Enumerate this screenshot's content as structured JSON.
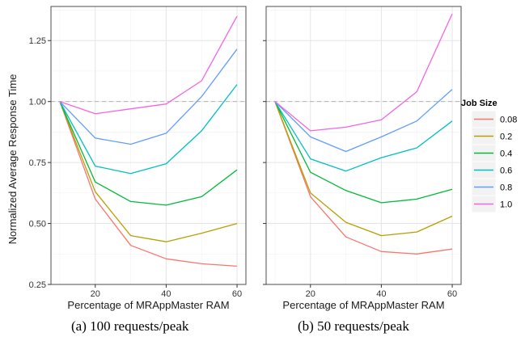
{
  "ylabel": "Normalized Average Response Time",
  "legend": {
    "title": "Job Size",
    "position": "right",
    "entries": [
      {
        "label": "0.08",
        "color": "#f8766d"
      },
      {
        "label": "0.2",
        "color": "#b79f00"
      },
      {
        "label": "0.4",
        "color": "#00ba38"
      },
      {
        "label": "0.6",
        "color": "#00bfc4"
      },
      {
        "label": "0.8",
        "color": "#619cff"
      },
      {
        "label": "1.0",
        "color": "#f564e3"
      }
    ]
  },
  "captions": {
    "a": "(a) 100 requests/peak",
    "b": "(b) 50 requests/peak"
  },
  "chart_data": [
    {
      "type": "line",
      "xlabel": "Percentage of MRAppMaster RAM",
      "ylabel": "Normalized Average Response Time",
      "x": [
        10,
        20,
        30,
        40,
        50,
        60
      ],
      "xlim": [
        7.5,
        62.5
      ],
      "ylim": [
        0.25,
        1.39
      ],
      "xticks": [
        20,
        40,
        60
      ],
      "yticks": [
        0.25,
        0.5,
        0.75,
        1.0,
        1.25
      ],
      "ytick_labels": [
        "0.25",
        "0.50",
        "0.75",
        "1.00",
        "1.25"
      ],
      "reference_line": 1.0,
      "grid": true,
      "series": [
        {
          "name": "0.08",
          "values": [
            1.0,
            0.6,
            0.41,
            0.355,
            0.335,
            0.325
          ]
        },
        {
          "name": "0.2",
          "values": [
            1.0,
            0.63,
            0.45,
            0.425,
            0.46,
            0.5
          ]
        },
        {
          "name": "0.4",
          "values": [
            1.0,
            0.67,
            0.59,
            0.575,
            0.61,
            0.72
          ]
        },
        {
          "name": "0.6",
          "values": [
            1.0,
            0.735,
            0.705,
            0.745,
            0.88,
            1.07
          ]
        },
        {
          "name": "0.8",
          "values": [
            1.0,
            0.85,
            0.825,
            0.87,
            1.02,
            1.215
          ]
        },
        {
          "name": "1.0",
          "values": [
            1.0,
            0.95,
            0.97,
            0.99,
            1.085,
            1.35
          ]
        }
      ]
    },
    {
      "type": "line",
      "xlabel": "Percentage of MRAppMaster RAM",
      "ylabel": "",
      "x": [
        10,
        20,
        30,
        40,
        50,
        60
      ],
      "xlim": [
        7.5,
        62.5
      ],
      "ylim": [
        0.25,
        1.39
      ],
      "xticks": [
        20,
        40,
        60
      ],
      "reference_line": 1.0,
      "grid": true,
      "series": [
        {
          "name": "0.08",
          "values": [
            1.0,
            0.61,
            0.445,
            0.385,
            0.375,
            0.395
          ]
        },
        {
          "name": "0.2",
          "values": [
            1.0,
            0.625,
            0.505,
            0.45,
            0.465,
            0.53
          ]
        },
        {
          "name": "0.4",
          "values": [
            1.0,
            0.71,
            0.635,
            0.585,
            0.6,
            0.64
          ]
        },
        {
          "name": "0.6",
          "values": [
            1.0,
            0.765,
            0.715,
            0.77,
            0.81,
            0.92
          ]
        },
        {
          "name": "0.8",
          "values": [
            1.0,
            0.855,
            0.795,
            0.855,
            0.92,
            1.05
          ]
        },
        {
          "name": "1.0",
          "values": [
            1.0,
            0.88,
            0.895,
            0.925,
            1.04,
            1.36
          ]
        }
      ]
    }
  ]
}
